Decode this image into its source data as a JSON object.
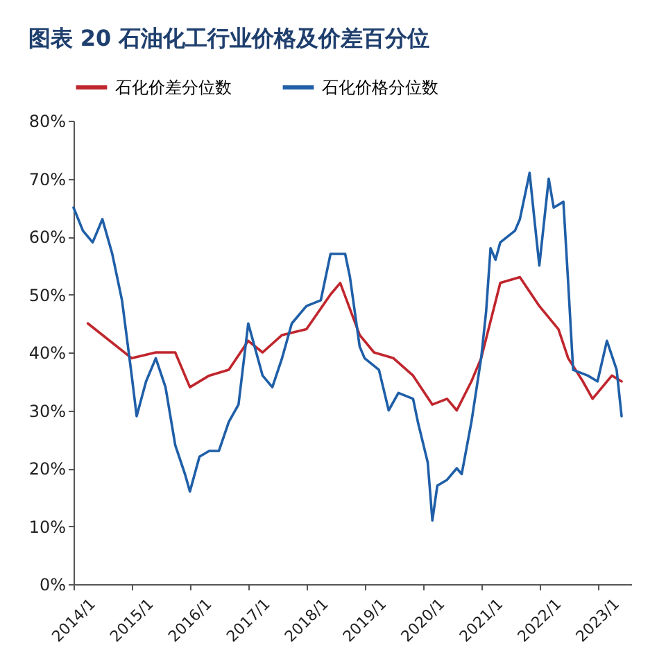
{
  "chart_data": {
    "type": "line",
    "title": "图表 20  石油化工行业价格及价差百分位",
    "legend": "top",
    "grid": false,
    "marker": "none",
    "line_style": "solid",
    "xlim": [
      "2014-01",
      "2023-08"
    ],
    "xticks": [
      {
        "value": "2014-01",
        "label": "2014/1"
      },
      {
        "value": "2015-01",
        "label": "2015/1"
      },
      {
        "value": "2016-01",
        "label": "2016/1"
      },
      {
        "value": "2017-01",
        "label": "2017/1"
      },
      {
        "value": "2018-01",
        "label": "2018/1"
      },
      {
        "value": "2019-01",
        "label": "2019/1"
      },
      {
        "value": "2020-01",
        "label": "2020/1"
      },
      {
        "value": "2021-01",
        "label": "2021/1"
      },
      {
        "value": "2022-01",
        "label": "2022/1"
      },
      {
        "value": "2023-01",
        "label": "2023/1"
      }
    ],
    "ylim": [
      0,
      80
    ],
    "yticks": [
      {
        "value": 0,
        "label": "0%"
      },
      {
        "value": 10,
        "label": "10%"
      },
      {
        "value": 20,
        "label": "20%"
      },
      {
        "value": 30,
        "label": "30%"
      },
      {
        "value": 40,
        "label": "40%"
      },
      {
        "value": 50,
        "label": "50%"
      },
      {
        "value": 60,
        "label": "60%"
      },
      {
        "value": 70,
        "label": "70%"
      },
      {
        "value": 80,
        "label": "80%"
      }
    ],
    "series": [
      {
        "name": "石化价差分位数",
        "color": "#c0262d",
        "x": [
          "2014-04",
          "2015-01",
          "2015-06",
          "2015-10",
          "2016-01",
          "2016-05",
          "2016-09",
          "2017-01",
          "2017-04",
          "2017-08",
          "2018-01",
          "2018-06",
          "2018-08",
          "2018-12",
          "2019-03",
          "2019-07",
          "2019-11",
          "2020-03",
          "2020-06",
          "2020-08",
          "2020-11",
          "2021-01",
          "2021-05",
          "2021-09",
          "2022-01",
          "2022-05",
          "2022-07",
          "2022-10",
          "2022-12",
          "2023-04",
          "2023-06"
        ],
        "values": [
          45,
          39,
          40,
          40,
          34,
          36,
          37,
          42,
          40,
          43,
          44,
          50,
          52,
          43,
          40,
          39,
          36,
          31,
          32,
          30,
          35,
          39,
          52,
          53,
          48,
          44,
          39,
          35,
          32,
          36,
          35
        ]
      },
      {
        "name": "石化价格分位数",
        "color": "#1f5fa8",
        "x": [
          "2014-01",
          "2014-03",
          "2014-05",
          "2014-07",
          "2014-09",
          "2014-11",
          "2015-01",
          "2015-02",
          "2015-04",
          "2015-06",
          "2015-08",
          "2015-10",
          "2015-12",
          "2016-01",
          "2016-03",
          "2016-05",
          "2016-07",
          "2016-09",
          "2016-11",
          "2017-01",
          "2017-04",
          "2017-06",
          "2017-08",
          "2017-10",
          "2018-01",
          "2018-04",
          "2018-06",
          "2018-09",
          "2018-10",
          "2018-12",
          "2019-01",
          "2019-04",
          "2019-06",
          "2019-08",
          "2019-11",
          "2019-12",
          "2020-02",
          "2020-03",
          "2020-04",
          "2020-06",
          "2020-08",
          "2020-09",
          "2020-11",
          "2021-01",
          "2021-02",
          "2021-03",
          "2021-04",
          "2021-05",
          "2021-08",
          "2021-09",
          "2021-11",
          "2021-12",
          "2022-01",
          "2022-03",
          "2022-04",
          "2022-06",
          "2022-07",
          "2022-08",
          "2022-11",
          "2023-01",
          "2023-03",
          "2023-05",
          "2023-06"
        ],
        "values": [
          65,
          61,
          59,
          63,
          57,
          49,
          36,
          29,
          35,
          39,
          34,
          24,
          19,
          16,
          22,
          23,
          23,
          28,
          31,
          45,
          36,
          34,
          39,
          45,
          48,
          49,
          57,
          57,
          53,
          41,
          39,
          37,
          30,
          33,
          32,
          28,
          21,
          11,
          17,
          18,
          20,
          19,
          28,
          39,
          47,
          58,
          56,
          59,
          61,
          63,
          71,
          63,
          55,
          70,
          65,
          66,
          52,
          37,
          36,
          35,
          42,
          37,
          29
        ]
      }
    ]
  }
}
